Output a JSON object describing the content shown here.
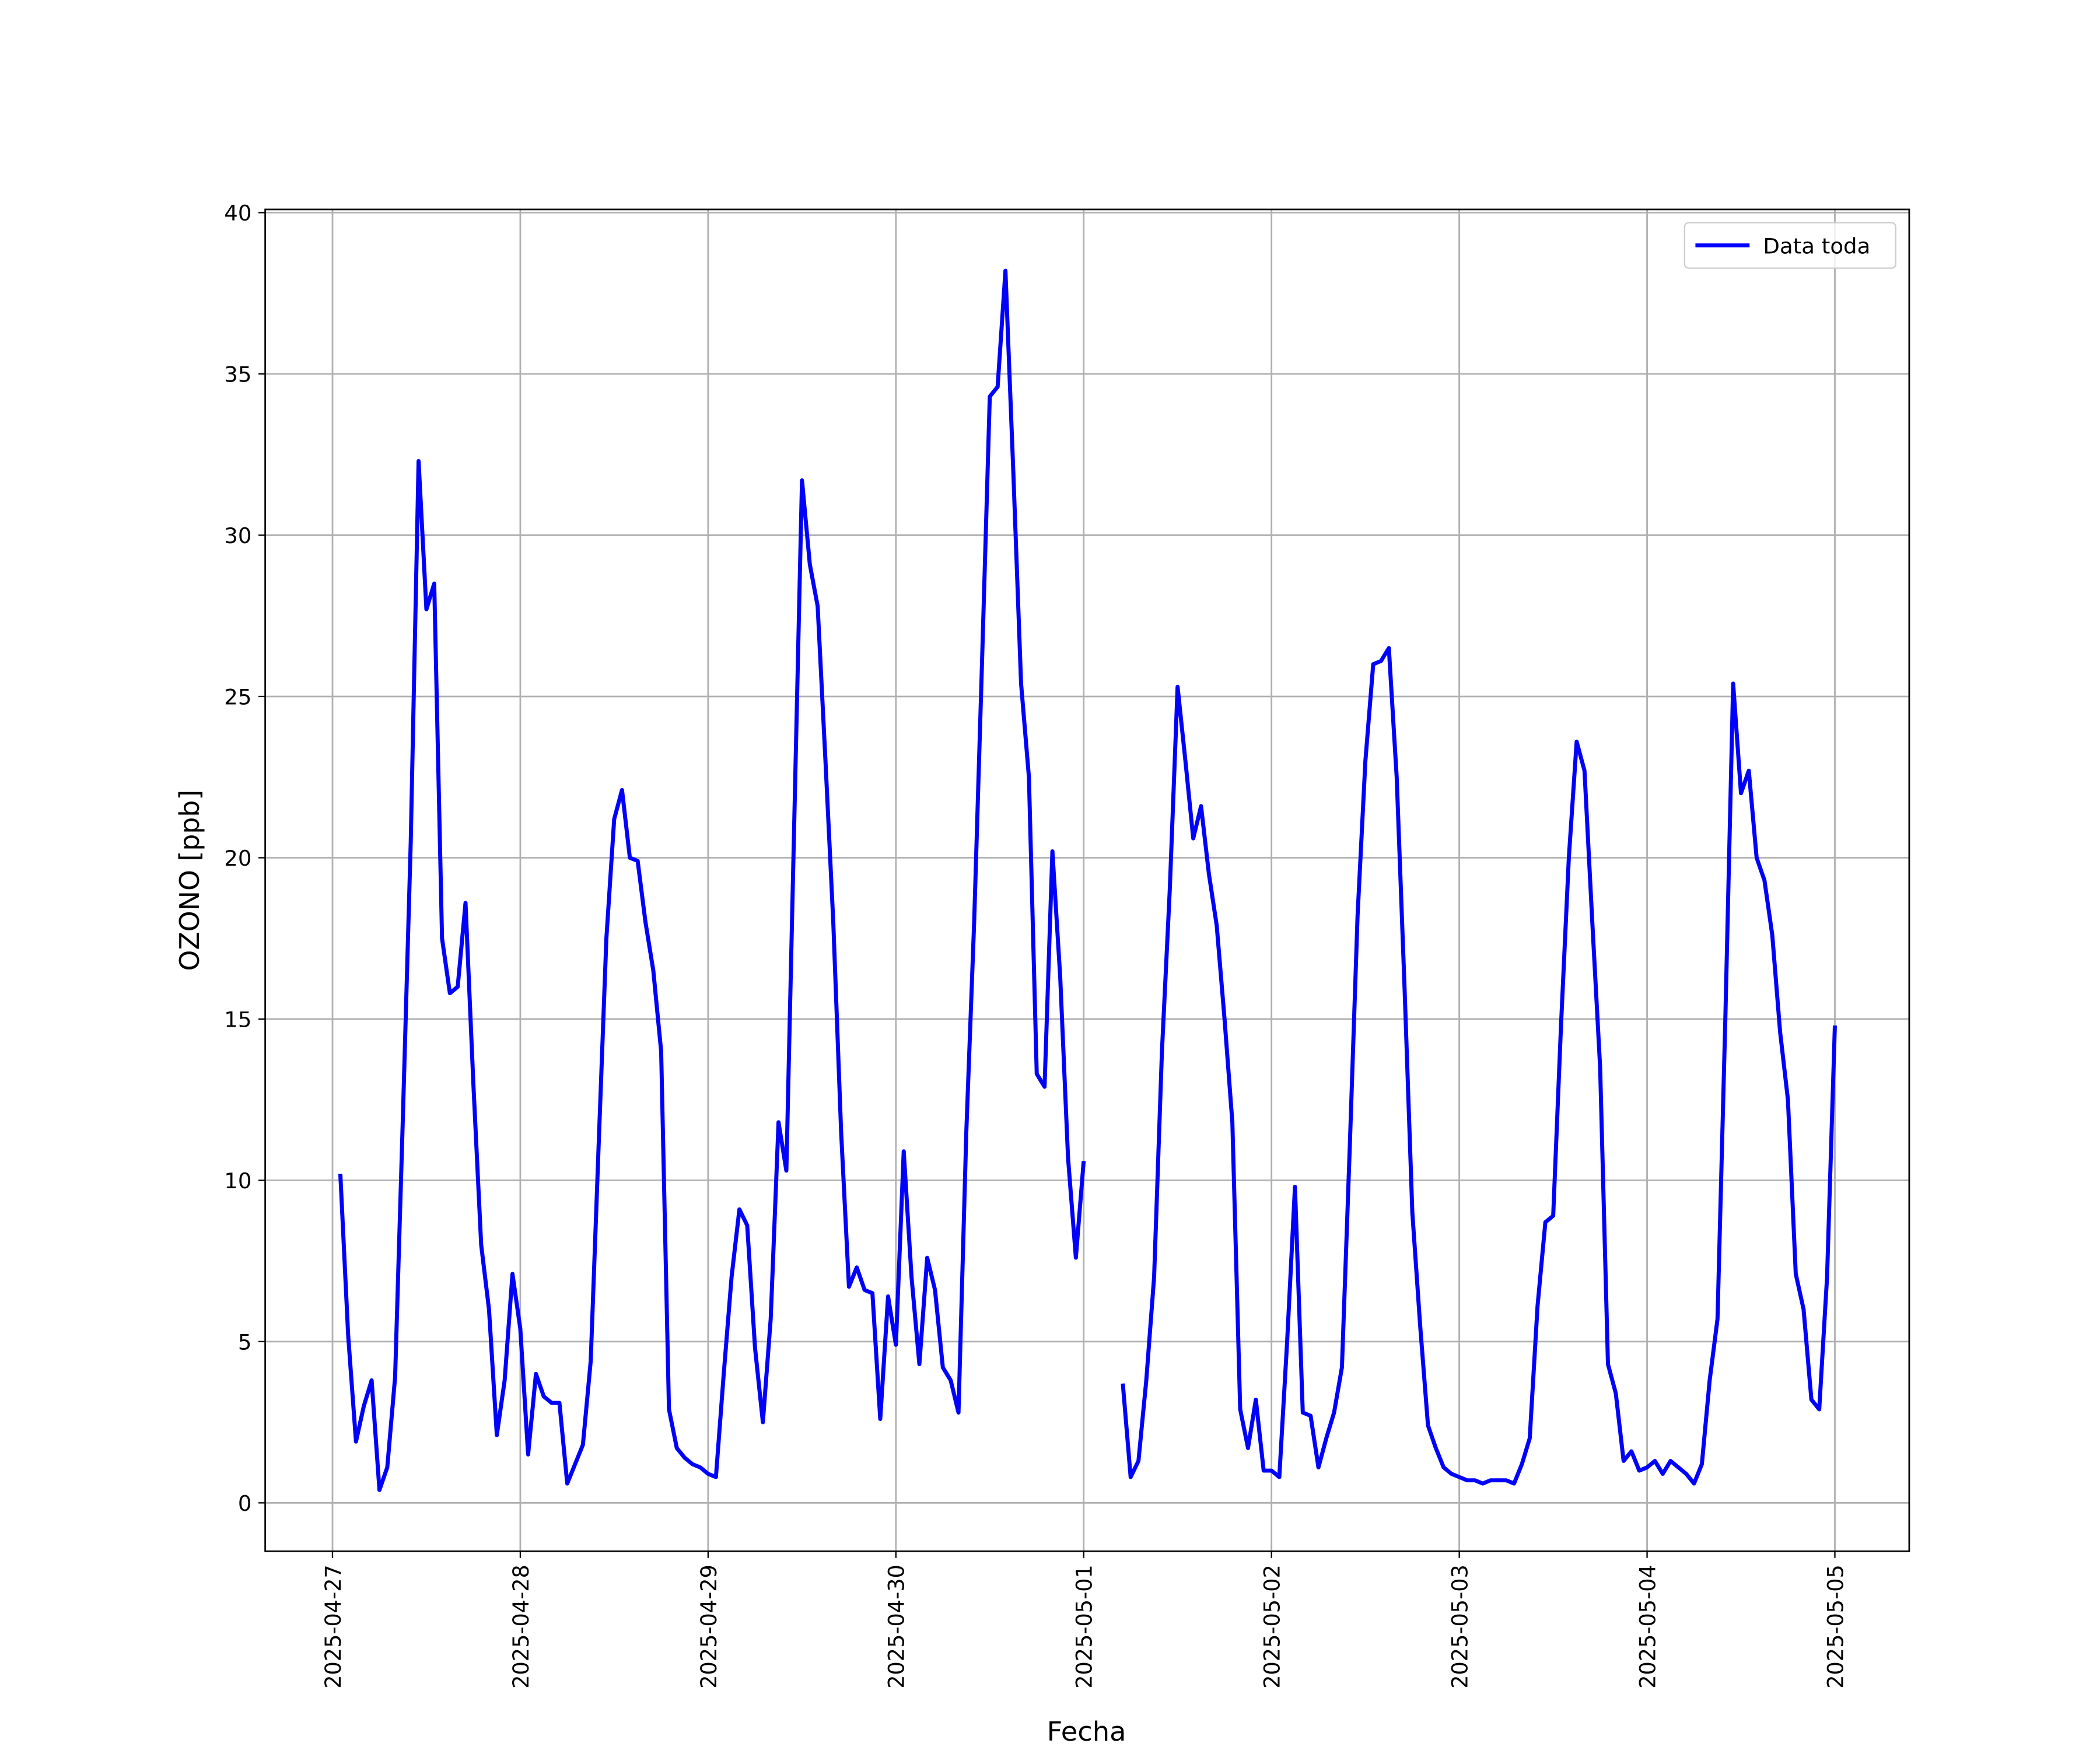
{
  "chart_data": {
    "type": "line",
    "xlabel": "Fecha",
    "ylabel": "OZONO [ppb]",
    "x": [
      "2025-04-27 01:00",
      "2025-04-27 02:00",
      "2025-04-27 03:00",
      "2025-04-27 04:00",
      "2025-04-27 05:00",
      "2025-04-27 06:00",
      "2025-04-27 07:00",
      "2025-04-27 08:00",
      "2025-04-27 09:00",
      "2025-04-27 10:00",
      "2025-04-27 11:00",
      "2025-04-27 12:00",
      "2025-04-27 13:00",
      "2025-04-27 14:00",
      "2025-04-27 15:00",
      "2025-04-27 16:00",
      "2025-04-27 17:00",
      "2025-04-27 18:00",
      "2025-04-27 19:00",
      "2025-04-27 20:00",
      "2025-04-27 21:00",
      "2025-04-27 22:00",
      "2025-04-27 23:00",
      "2025-04-28 00:00",
      "2025-04-28 01:00",
      "2025-04-28 02:00",
      "2025-04-28 03:00",
      "2025-04-28 04:00",
      "2025-04-28 05:00",
      "2025-04-28 06:00",
      "2025-04-28 07:00",
      "2025-04-28 08:00",
      "2025-04-28 09:00",
      "2025-04-28 10:00",
      "2025-04-28 11:00",
      "2025-04-28 12:00",
      "2025-04-28 13:00",
      "2025-04-28 14:00",
      "2025-04-28 15:00",
      "2025-04-28 16:00",
      "2025-04-28 17:00",
      "2025-04-28 18:00",
      "2025-04-28 19:00",
      "2025-04-28 20:00",
      "2025-04-28 21:00",
      "2025-04-28 22:00",
      "2025-04-28 23:00",
      "2025-04-29 00:00",
      "2025-04-29 01:00",
      "2025-04-29 02:00",
      "2025-04-29 03:00",
      "2025-04-29 04:00",
      "2025-04-29 05:00",
      "2025-04-29 06:00",
      "2025-04-29 07:00",
      "2025-04-29 08:00",
      "2025-04-29 09:00",
      "2025-04-29 10:00",
      "2025-04-29 11:00",
      "2025-04-29 12:00",
      "2025-04-29 13:00",
      "2025-04-29 14:00",
      "2025-04-29 15:00",
      "2025-04-29 16:00",
      "2025-04-29 17:00",
      "2025-04-29 18:00",
      "2025-04-29 19:00",
      "2025-04-29 20:00",
      "2025-04-29 21:00",
      "2025-04-29 22:00",
      "2025-04-29 23:00",
      "2025-04-30 00:00",
      "2025-04-30 01:00",
      "2025-04-30 02:00",
      "2025-04-30 03:00",
      "2025-04-30 04:00",
      "2025-04-30 05:00",
      "2025-04-30 06:00",
      "2025-04-30 07:00",
      "2025-04-30 08:00",
      "2025-04-30 09:00",
      "2025-04-30 10:00",
      "2025-04-30 11:00",
      "2025-04-30 12:00",
      "2025-04-30 13:00",
      "2025-04-30 14:00",
      "2025-04-30 15:00",
      "2025-04-30 16:00",
      "2025-04-30 17:00",
      "2025-04-30 18:00",
      "2025-04-30 19:00",
      "2025-04-30 20:00",
      "2025-04-30 21:00",
      "2025-04-30 22:00",
      "2025-04-30 23:00",
      "2025-05-01 00:00",
      "2025-05-01 01:00",
      "2025-05-01 02:00",
      "2025-05-01 03:00",
      "2025-05-01 04:00",
      "2025-05-01 05:00",
      "2025-05-01 06:00",
      "2025-05-01 07:00",
      "2025-05-01 08:00",
      "2025-05-01 09:00",
      "2025-05-01 10:00",
      "2025-05-01 11:00",
      "2025-05-01 12:00",
      "2025-05-01 13:00",
      "2025-05-01 14:00",
      "2025-05-01 15:00",
      "2025-05-01 16:00",
      "2025-05-01 17:00",
      "2025-05-01 18:00",
      "2025-05-01 19:00",
      "2025-05-01 20:00",
      "2025-05-01 21:00",
      "2025-05-01 22:00",
      "2025-05-01 23:00",
      "2025-05-02 00:00",
      "2025-05-02 01:00",
      "2025-05-02 02:00",
      "2025-05-02 03:00",
      "2025-05-02 04:00",
      "2025-05-02 05:00",
      "2025-05-02 06:00",
      "2025-05-02 07:00",
      "2025-05-02 08:00",
      "2025-05-02 09:00",
      "2025-05-02 10:00",
      "2025-05-02 11:00",
      "2025-05-02 12:00",
      "2025-05-02 13:00",
      "2025-05-02 14:00",
      "2025-05-02 15:00",
      "2025-05-02 16:00",
      "2025-05-02 17:00",
      "2025-05-02 18:00",
      "2025-05-02 19:00",
      "2025-05-02 20:00",
      "2025-05-02 21:00",
      "2025-05-02 22:00",
      "2025-05-02 23:00",
      "2025-05-03 00:00",
      "2025-05-03 01:00",
      "2025-05-03 02:00",
      "2025-05-03 03:00",
      "2025-05-03 04:00",
      "2025-05-03 05:00",
      "2025-05-03 06:00",
      "2025-05-03 07:00",
      "2025-05-03 08:00",
      "2025-05-03 09:00",
      "2025-05-03 10:00",
      "2025-05-03 11:00",
      "2025-05-03 12:00",
      "2025-05-03 13:00",
      "2025-05-03 14:00",
      "2025-05-03 15:00",
      "2025-05-03 16:00",
      "2025-05-03 17:00",
      "2025-05-03 18:00",
      "2025-05-03 19:00",
      "2025-05-03 20:00",
      "2025-05-03 21:00",
      "2025-05-03 22:00",
      "2025-05-03 23:00",
      "2025-05-04 00:00",
      "2025-05-04 01:00",
      "2025-05-04 02:00",
      "2025-05-04 03:00",
      "2025-05-04 04:00",
      "2025-05-04 05:00",
      "2025-05-04 06:00",
      "2025-05-04 07:00",
      "2025-05-04 08:00",
      "2025-05-04 09:00",
      "2025-05-04 10:00",
      "2025-05-04 11:00",
      "2025-05-04 12:00",
      "2025-05-04 13:00",
      "2025-05-04 14:00",
      "2025-05-04 15:00",
      "2025-05-04 16:00",
      "2025-05-04 17:00",
      "2025-05-04 18:00",
      "2025-05-04 19:00",
      "2025-05-04 20:00",
      "2025-05-04 21:00",
      "2025-05-04 22:00",
      "2025-05-04 23:00",
      "2025-05-05 00:00"
    ],
    "series": [
      {
        "name": "Data toda",
        "color": "#0000ff",
        "values": [
          10.2,
          5.2,
          1.9,
          3.0,
          3.8,
          0.4,
          1.1,
          3.9,
          12.0,
          20.5,
          32.3,
          27.7,
          28.5,
          17.5,
          15.8,
          16.0,
          18.6,
          13.0,
          8.0,
          6.0,
          2.1,
          3.8,
          7.1,
          5.4,
          1.5,
          4.0,
          3.3,
          3.1,
          3.1,
          0.6,
          1.2,
          1.8,
          4.4,
          11.0,
          17.5,
          21.2,
          22.1,
          20.0,
          19.9,
          18.0,
          16.5,
          14.0,
          2.9,
          1.7,
          1.4,
          1.2,
          1.1,
          0.9,
          0.8,
          4.0,
          7.0,
          9.1,
          8.6,
          4.8,
          2.5,
          5.7,
          11.8,
          10.3,
          21.0,
          31.7,
          29.1,
          27.8,
          23.0,
          18.0,
          11.5,
          6.7,
          7.3,
          6.6,
          6.5,
          2.6,
          6.4,
          4.9,
          10.9,
          7.0,
          4.3,
          7.6,
          6.6,
          4.2,
          3.8,
          2.8,
          11.5,
          18.0,
          26.0,
          34.3,
          34.6,
          38.2,
          32.0,
          25.4,
          22.5,
          13.3,
          12.9,
          20.2,
          16.3,
          10.7,
          7.6,
          10.6,
          null,
          null,
          null,
          null,
          3.7,
          0.8,
          1.3,
          3.8,
          7.0,
          14.0,
          19.0,
          25.3,
          23.0,
          20.6,
          21.6,
          19.5,
          17.9,
          15.0,
          11.8,
          2.9,
          1.7,
          3.2,
          1.0,
          1.0,
          0.8,
          5.0,
          9.8,
          2.8,
          2.7,
          1.1,
          2.0,
          2.8,
          4.2,
          11.0,
          18.2,
          23.0,
          26.0,
          26.1,
          26.5,
          22.5,
          16.0,
          9.0,
          5.5,
          2.4,
          1.7,
          1.1,
          0.9,
          0.8,
          0.7,
          0.7,
          0.6,
          0.7,
          0.7,
          0.7,
          0.6,
          1.2,
          2.0,
          6.1,
          8.7,
          8.9,
          14.8,
          20.0,
          23.6,
          22.7,
          18.0,
          13.5,
          4.3,
          3.4,
          1.3,
          1.6,
          1.0,
          1.1,
          1.3,
          0.9,
          1.3,
          1.1,
          0.9,
          0.6,
          1.2,
          3.8,
          5.7,
          15.0,
          25.4,
          22.0,
          22.7,
          20.0,
          19.3,
          17.6,
          14.6,
          12.5,
          7.1,
          6.0,
          3.2,
          2.9,
          7.0,
          14.8
        ]
      }
    ],
    "xlim": [
      "2025-04-26 15:24",
      "2025-05-05 09:30"
    ],
    "xticks": [
      "2025-04-27",
      "2025-04-28",
      "2025-04-29",
      "2025-04-30",
      "2025-05-01",
      "2025-05-02",
      "2025-05-03",
      "2025-05-04",
      "2025-05-05"
    ],
    "ylim": [
      -1.5,
      40.1
    ],
    "yticks": [
      0,
      5,
      10,
      15,
      20,
      25,
      30,
      35,
      40
    ],
    "grid": true,
    "legend": "upper right"
  }
}
